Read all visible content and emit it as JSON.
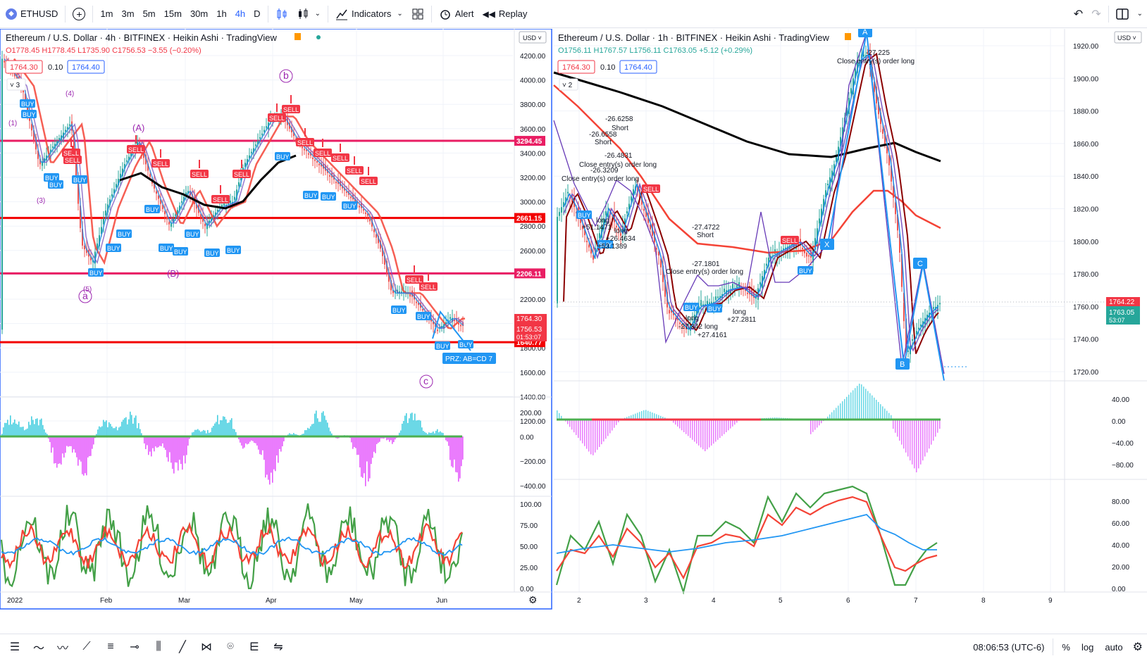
{
  "toolbar": {
    "symbol": "ETHUSD",
    "intervals": [
      "1m",
      "3m",
      "5m",
      "15m",
      "30m",
      "1h",
      "4h",
      "D"
    ],
    "active_interval": "4h",
    "indicators_label": "Indicators",
    "alert_label": "Alert",
    "replay_label": "Replay"
  },
  "left_chart": {
    "title": "Ethereum / U.S. Dollar · 4h · BITFINEX · Heikin Ashi · TradingView",
    "ohlc": {
      "o": "O1778.45",
      "h": "H1778.45",
      "l": "L1735.90",
      "c": "C1756.53",
      "chg": "−3.55 (−0.20%)"
    },
    "bid": "1764.30",
    "spread": "0.10",
    "ask": "1764.40",
    "layer_count": "3",
    "currency": "USD",
    "price_ticks": [
      "4200.00",
      "4000.00",
      "3800.00",
      "3600.00",
      "3400.00",
      "3200.00",
      "3000.00",
      "2800.00",
      "2600.00",
      "2400.00",
      "2200.00",
      "2000.00",
      "1800.00",
      "1600.00",
      "1400.00",
      "1200.00"
    ],
    "level_labels": [
      "3294.45",
      "2661.15",
      "2206.11",
      "1640.77"
    ],
    "last_price": "1756.53",
    "countdown": "01:53:07",
    "bid_tag": "1764.30",
    "osc1_ticks": [
      "200.00",
      "0.00",
      "−200.00",
      "−400.00"
    ],
    "osc2_ticks": [
      "100.00",
      "75.00",
      "50.00",
      "25.00",
      "0.00"
    ],
    "time_labels": [
      "2022",
      "Feb",
      "Mar",
      "Apr",
      "May",
      "Jun"
    ],
    "wave_labels": [
      "(4)",
      "(1)",
      "(3)",
      "(5)",
      "a",
      "(A)",
      "(B)",
      "b",
      "c"
    ],
    "prz_label": "PRZ: AB=CD 7"
  },
  "right_chart": {
    "title": "Ethereum / U.S. Dollar · 1h · BITFINEX · Heikin Ashi · TradingView",
    "ohlc": {
      "o": "O1756.11",
      "h": "H1767.57",
      "l": "L1756.11",
      "c": "C1763.05",
      "chg": "+5.12 (+0.29%)"
    },
    "bid": "1764.30",
    "spread": "0.10",
    "ask": "1764.40",
    "layer_count": "2",
    "currency": "USD",
    "price_ticks": [
      "1920.00",
      "1900.00",
      "1880.00",
      "1860.00",
      "1840.00",
      "1820.00",
      "1800.00",
      "1780.00",
      "1760.00",
      "1740.00",
      "1720.00"
    ],
    "last_price": "1764.22",
    "close_price": "1763.05",
    "countdown": "53:07",
    "osc1_ticks": [
      "40.00",
      "0.00",
      "−40.00",
      "−80.00"
    ],
    "osc2_ticks": [
      "80.00",
      "60.00",
      "40.00",
      "20.00",
      "0.00"
    ],
    "time_labels": [
      "2",
      "3",
      "4",
      "5",
      "6",
      "7",
      "8",
      "9"
    ],
    "annotations": [
      "-26.6258",
      "Short",
      "-26.6558",
      "Short",
      "-26.4831",
      "Close entry(s) order long",
      "-26.3209",
      "Close entry(s) order long",
      "long",
      "+51.1471",
      "long",
      "+26.4634",
      "+53.1389",
      "-27.4722",
      "Short",
      "-27.1801",
      "Close entry(s) order long",
      "long",
      "-27.342",
      "long",
      "+27.4161",
      "long",
      "+27.2811",
      "-27.225",
      "Close entry(s) order long"
    ]
  },
  "bottom": {
    "clock": "08:06:53 (UTC-6)",
    "percent": "%",
    "log": "log",
    "auto": "auto"
  },
  "colors": {
    "accent": "#2962ff",
    "sell": "#f23645",
    "buy": "#2196f3",
    "level": "#f23645",
    "osc_pos": "#26c6da",
    "osc_neg": "#e040fb"
  }
}
